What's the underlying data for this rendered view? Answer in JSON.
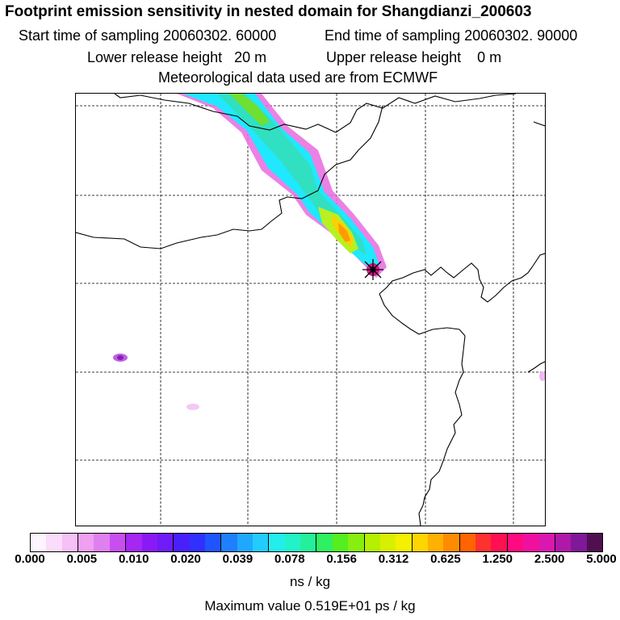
{
  "header": {
    "title": "Footprint emission sensitivity in nested domain for Shangdianzi_200603",
    "start_label": "Start time of sampling 20060302. 60000",
    "end_label": "End time of sampling 20060302. 90000",
    "lower_label": "Lower release height   20 m",
    "upper_label": "Upper release height    0 m",
    "met_label": "Meteorological data used are from ECMWF"
  },
  "colorbar": {
    "colors": [
      "#fef4fe",
      "#fbdcfb",
      "#f7c0f7",
      "#f0a0f0",
      "#e080ee",
      "#c94ef0",
      "#a626f2",
      "#8a1af5",
      "#6f1cf8",
      "#4a20fa",
      "#3030ff",
      "#1f55ff",
      "#1e80ff",
      "#20a8ff",
      "#22ccff",
      "#22eeee",
      "#21f2c8",
      "#24f09a",
      "#2ef060",
      "#55ee20",
      "#88ee10",
      "#b4f000",
      "#d8f000",
      "#f4f000",
      "#ffd500",
      "#ffb000",
      "#ff8c00",
      "#ff6400",
      "#ff3030",
      "#ff1050",
      "#ff0a80",
      "#f010a0",
      "#d818b0",
      "#b018a8",
      "#80189a",
      "#501050"
    ],
    "ticks": [
      "0.000",
      "0.005",
      "0.010",
      "0.020",
      "0.039",
      "0.078",
      "0.156",
      "0.312",
      "0.625",
      "1.250",
      "2.500",
      "5.000"
    ],
    "unit": "ns / kg",
    "max_label": "Maximum value  0.519E+01 ps / kg"
  }
}
